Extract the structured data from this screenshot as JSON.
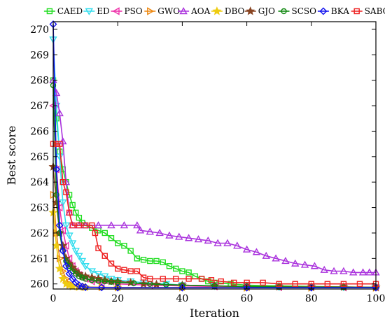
{
  "chart_data": {
    "type": "line",
    "xlabel": "Iteration",
    "ylabel": "Best score",
    "xlim": [
      0,
      100
    ],
    "ylim": [
      259.8,
      270.3
    ],
    "xticks": [
      0,
      20,
      40,
      60,
      80,
      100
    ],
    "yticks": [
      260,
      261,
      262,
      263,
      264,
      265,
      266,
      267,
      268,
      269,
      270
    ],
    "grid": false,
    "legend_position": "top",
    "series": [
      {
        "name": "CAED",
        "color": "#22dd22",
        "marker": "square",
        "points": [
          [
            0,
            268.0
          ],
          [
            1,
            266.5
          ],
          [
            2,
            265.2
          ],
          [
            3,
            264.5
          ],
          [
            4,
            264.0
          ],
          [
            5,
            263.5
          ],
          [
            6,
            263.1
          ],
          [
            7,
            262.8
          ],
          [
            8,
            262.6
          ],
          [
            9,
            262.4
          ],
          [
            10,
            262.3
          ],
          [
            12,
            262.2
          ],
          [
            14,
            262.1
          ],
          [
            16,
            262.0
          ],
          [
            18,
            261.8
          ],
          [
            20,
            261.6
          ],
          [
            22,
            261.5
          ],
          [
            24,
            261.3
          ],
          [
            26,
            261.0
          ],
          [
            28,
            260.95
          ],
          [
            30,
            260.9
          ],
          [
            32,
            260.9
          ],
          [
            34,
            260.85
          ],
          [
            36,
            260.7
          ],
          [
            38,
            260.6
          ],
          [
            40,
            260.5
          ],
          [
            42,
            260.45
          ],
          [
            44,
            260.3
          ],
          [
            46,
            260.2
          ],
          [
            48,
            260.1
          ],
          [
            50,
            260.05
          ],
          [
            55,
            260.0
          ],
          [
            60,
            259.95
          ],
          [
            70,
            259.92
          ],
          [
            80,
            259.9
          ],
          [
            90,
            259.88
          ],
          [
            100,
            259.87
          ]
        ]
      },
      {
        "name": "ED",
        "color": "#33ddee",
        "marker": "triangle-down",
        "points": [
          [
            0,
            269.6
          ],
          [
            1,
            267.0
          ],
          [
            2,
            265.0
          ],
          [
            3,
            263.2
          ],
          [
            4,
            262.3
          ],
          [
            5,
            261.9
          ],
          [
            6,
            261.6
          ],
          [
            7,
            261.3
          ],
          [
            8,
            261.1
          ],
          [
            9,
            260.9
          ],
          [
            10,
            260.7
          ],
          [
            12,
            260.5
          ],
          [
            14,
            260.4
          ],
          [
            16,
            260.3
          ],
          [
            18,
            260.2
          ],
          [
            20,
            260.15
          ],
          [
            24,
            260.1
          ],
          [
            28,
            260.05
          ],
          [
            35,
            260.0
          ],
          [
            40,
            259.95
          ],
          [
            50,
            259.92
          ],
          [
            60,
            259.9
          ],
          [
            70,
            259.88
          ],
          [
            80,
            259.88
          ],
          [
            90,
            259.87
          ],
          [
            100,
            259.87
          ]
        ]
      },
      {
        "name": "PSO",
        "color": "#ee33aa",
        "marker": "triangle-left",
        "points": [
          [
            0,
            267.0
          ],
          [
            1,
            264.5
          ],
          [
            2,
            263.0
          ],
          [
            3,
            262.1
          ],
          [
            4,
            261.5
          ],
          [
            5,
            261.0
          ],
          [
            6,
            260.7
          ],
          [
            7,
            260.5
          ],
          [
            8,
            260.35
          ],
          [
            10,
            260.2
          ],
          [
            12,
            260.1
          ],
          [
            15,
            260.05
          ],
          [
            20,
            260.0
          ],
          [
            30,
            259.95
          ],
          [
            40,
            259.92
          ],
          [
            50,
            259.9
          ],
          [
            60,
            259.88
          ],
          [
            70,
            259.87
          ],
          [
            80,
            259.87
          ],
          [
            90,
            259.86
          ],
          [
            100,
            259.86
          ]
        ]
      },
      {
        "name": "GWO",
        "color": "#ee8811",
        "marker": "triangle-right",
        "points": [
          [
            0,
            263.5
          ],
          [
            1,
            262.0
          ],
          [
            2,
            261.0
          ],
          [
            3,
            260.5
          ],
          [
            4,
            260.2
          ],
          [
            5,
            260.0
          ],
          [
            6,
            259.95
          ],
          [
            8,
            259.9
          ],
          [
            10,
            259.88
          ],
          [
            15,
            259.87
          ],
          [
            20,
            259.86
          ],
          [
            40,
            259.86
          ],
          [
            60,
            259.85
          ],
          [
            80,
            259.85
          ],
          [
            100,
            259.85
          ]
        ]
      },
      {
        "name": "AOA",
        "color": "#aa33dd",
        "marker": "triangle-up",
        "points": [
          [
            0,
            268.0
          ],
          [
            1,
            267.5
          ],
          [
            2,
            266.7
          ],
          [
            3,
            265.6
          ],
          [
            4,
            264.0
          ],
          [
            5,
            262.8
          ],
          [
            6,
            262.3
          ],
          [
            8,
            262.3
          ],
          [
            10,
            262.3
          ],
          [
            14,
            262.3
          ],
          [
            18,
            262.3
          ],
          [
            22,
            262.3
          ],
          [
            26,
            262.3
          ],
          [
            27,
            262.1
          ],
          [
            30,
            262.05
          ],
          [
            33,
            262.0
          ],
          [
            36,
            261.9
          ],
          [
            39,
            261.85
          ],
          [
            42,
            261.8
          ],
          [
            45,
            261.75
          ],
          [
            48,
            261.7
          ],
          [
            51,
            261.6
          ],
          [
            54,
            261.6
          ],
          [
            57,
            261.5
          ],
          [
            60,
            261.35
          ],
          [
            63,
            261.25
          ],
          [
            66,
            261.1
          ],
          [
            69,
            261.0
          ],
          [
            72,
            260.9
          ],
          [
            75,
            260.8
          ],
          [
            78,
            260.75
          ],
          [
            81,
            260.7
          ],
          [
            84,
            260.55
          ],
          [
            87,
            260.5
          ],
          [
            90,
            260.5
          ],
          [
            93,
            260.45
          ],
          [
            96,
            260.45
          ],
          [
            98,
            260.45
          ],
          [
            100,
            260.45
          ]
        ]
      },
      {
        "name": "DBO",
        "color": "#eecc11",
        "marker": "star",
        "points": [
          [
            0,
            262.8
          ],
          [
            1,
            261.5
          ],
          [
            2,
            260.6
          ],
          [
            3,
            260.2
          ],
          [
            4,
            260.0
          ],
          [
            5,
            259.95
          ],
          [
            6,
            259.9
          ],
          [
            8,
            259.88
          ],
          [
            10,
            259.87
          ],
          [
            20,
            259.86
          ],
          [
            40,
            259.86
          ],
          [
            60,
            259.86
          ],
          [
            80,
            259.86
          ],
          [
            100,
            259.86
          ]
        ]
      },
      {
        "name": "GJO",
        "color": "#884422",
        "marker": "star",
        "points": [
          [
            0,
            264.6
          ],
          [
            1,
            263.2
          ],
          [
            2,
            262.0
          ],
          [
            3,
            261.5
          ],
          [
            4,
            261.0
          ],
          [
            5,
            260.8
          ],
          [
            6,
            260.65
          ],
          [
            7,
            260.5
          ],
          [
            8,
            260.4
          ],
          [
            9,
            260.3
          ],
          [
            10,
            260.3
          ],
          [
            12,
            260.25
          ],
          [
            14,
            260.2
          ],
          [
            16,
            260.15
          ],
          [
            18,
            260.1
          ],
          [
            20,
            260.1
          ],
          [
            24,
            260.05
          ],
          [
            28,
            260.0
          ],
          [
            32,
            259.98
          ],
          [
            40,
            259.95
          ],
          [
            50,
            259.92
          ],
          [
            60,
            259.9
          ],
          [
            70,
            259.89
          ],
          [
            80,
            259.88
          ],
          [
            90,
            259.88
          ],
          [
            100,
            259.87
          ]
        ]
      },
      {
        "name": "SCSO",
        "color": "#118811",
        "marker": "circle",
        "points": [
          [
            0,
            267.8
          ],
          [
            1,
            263.5
          ],
          [
            2,
            262.0
          ],
          [
            3,
            261.3
          ],
          [
            4,
            260.9
          ],
          [
            5,
            260.7
          ],
          [
            6,
            260.5
          ],
          [
            7,
            260.4
          ],
          [
            8,
            260.3
          ],
          [
            9,
            260.25
          ],
          [
            10,
            260.2
          ],
          [
            12,
            260.15
          ],
          [
            14,
            260.12
          ],
          [
            16,
            260.1
          ],
          [
            18,
            260.08
          ],
          [
            20,
            260.06
          ],
          [
            25,
            260.03
          ],
          [
            30,
            260.0
          ],
          [
            35,
            259.97
          ],
          [
            40,
            259.95
          ],
          [
            50,
            259.92
          ],
          [
            60,
            259.9
          ],
          [
            70,
            259.88
          ],
          [
            80,
            259.87
          ],
          [
            90,
            259.87
          ],
          [
            100,
            259.86
          ]
        ]
      },
      {
        "name": "BKA",
        "color": "#1111ee",
        "marker": "diamond",
        "points": [
          [
            0,
            270.2
          ],
          [
            1,
            264.5
          ],
          [
            2,
            262.3
          ],
          [
            3,
            261.3
          ],
          [
            4,
            260.7
          ],
          [
            5,
            260.4
          ],
          [
            6,
            260.2
          ],
          [
            7,
            260.05
          ],
          [
            8,
            259.95
          ],
          [
            9,
            259.9
          ],
          [
            10,
            259.87
          ],
          [
            15,
            259.86
          ],
          [
            20,
            259.85
          ],
          [
            40,
            259.85
          ],
          [
            60,
            259.85
          ],
          [
            80,
            259.85
          ],
          [
            100,
            259.85
          ]
        ]
      },
      {
        "name": "SABO",
        "color": "#ee2222",
        "marker": "square",
        "points": [
          [
            0,
            265.5
          ],
          [
            1,
            265.5
          ],
          [
            2,
            265.5
          ],
          [
            3,
            264.0
          ],
          [
            4,
            263.6
          ],
          [
            5,
            262.8
          ],
          [
            6,
            262.3
          ],
          [
            8,
            262.3
          ],
          [
            10,
            262.3
          ],
          [
            12,
            262.3
          ],
          [
            13,
            262.0
          ],
          [
            14,
            261.4
          ],
          [
            16,
            261.1
          ],
          [
            18,
            260.8
          ],
          [
            20,
            260.6
          ],
          [
            22,
            260.55
          ],
          [
            24,
            260.5
          ],
          [
            26,
            260.5
          ],
          [
            28,
            260.25
          ],
          [
            30,
            260.2
          ],
          [
            34,
            260.2
          ],
          [
            38,
            260.2
          ],
          [
            42,
            260.2
          ],
          [
            46,
            260.2
          ],
          [
            49,
            260.15
          ],
          [
            52,
            260.1
          ],
          [
            56,
            260.05
          ],
          [
            60,
            260.05
          ],
          [
            65,
            260.05
          ],
          [
            70,
            260.0
          ],
          [
            75,
            260.0
          ],
          [
            80,
            260.0
          ],
          [
            85,
            260.0
          ],
          [
            90,
            260.0
          ],
          [
            95,
            260.0
          ],
          [
            100,
            260.0
          ]
        ]
      }
    ]
  }
}
